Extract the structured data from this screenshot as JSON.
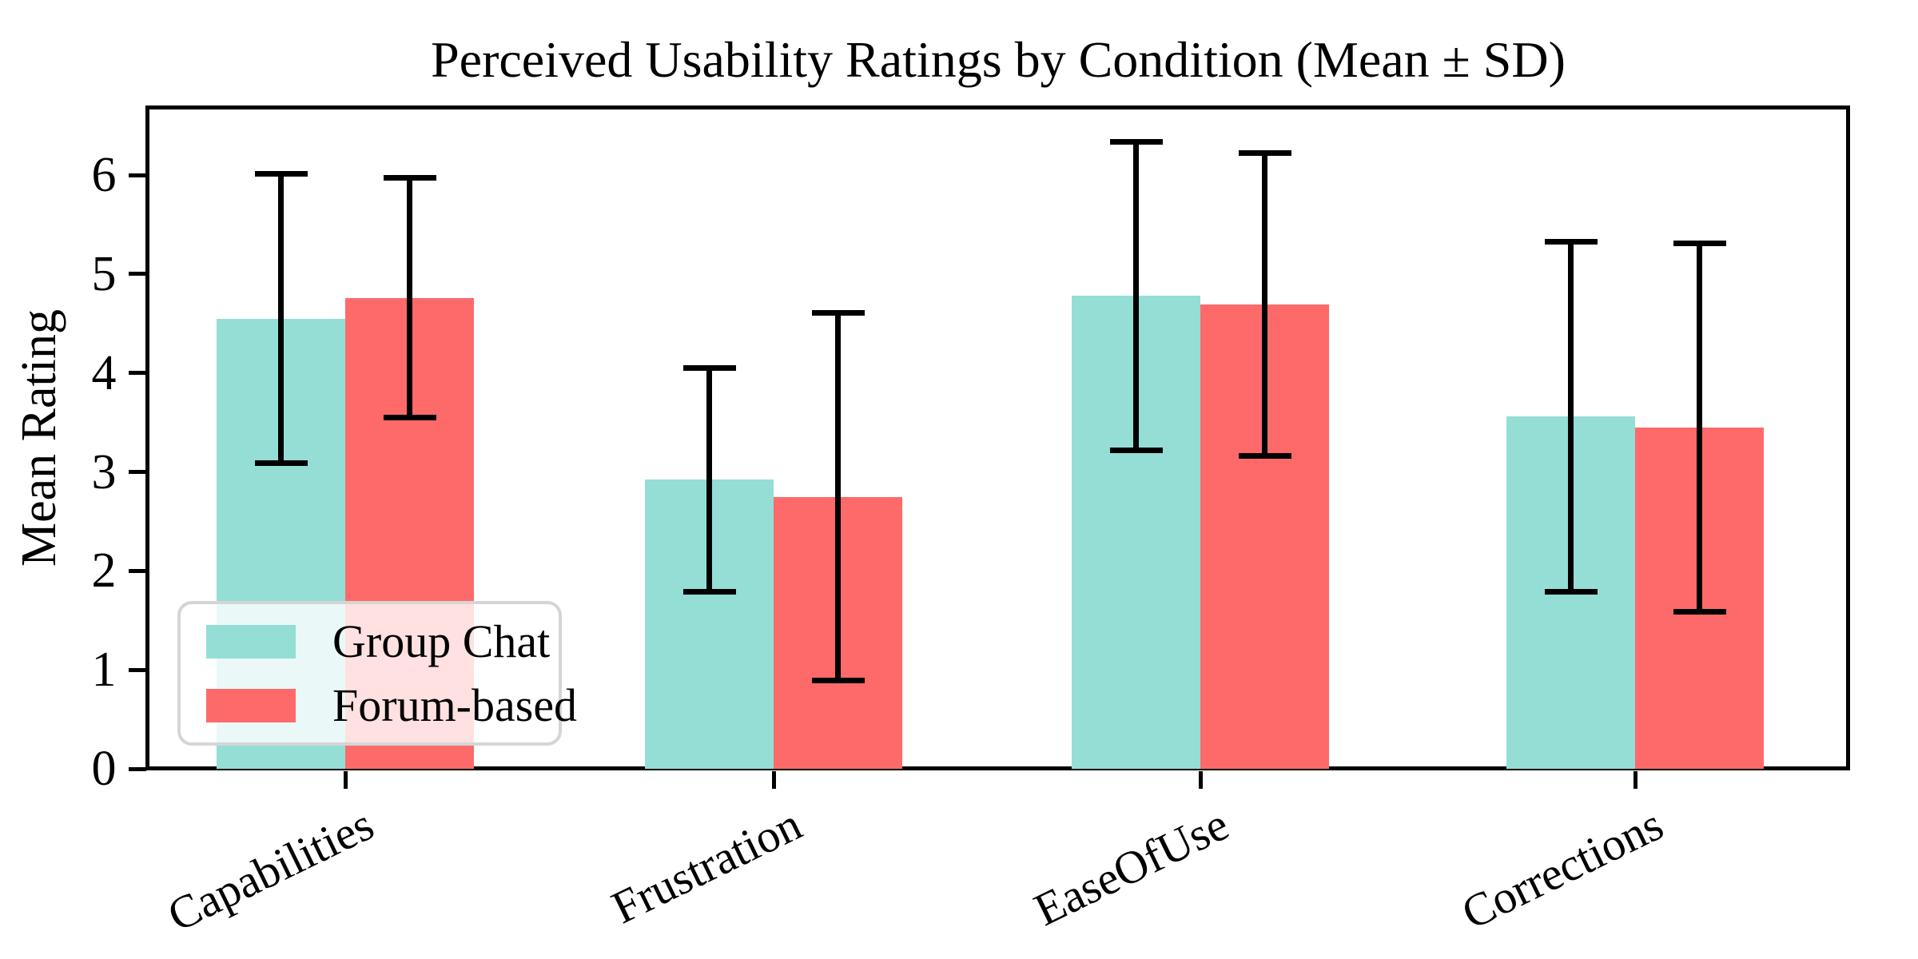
{
  "chart_data": {
    "type": "bar",
    "title": "Perceived Usability Ratings by Condition (Mean ± SD)",
    "ylabel": "Mean Rating",
    "xlabel": "",
    "categories": [
      "Capabilities",
      "Frustration",
      "EaseOfUse",
      "Corrections"
    ],
    "series": [
      {
        "name": "Group Chat",
        "color": "#94DED6",
        "means": [
          4.55,
          2.92,
          4.78,
          3.56
        ],
        "sds": [
          1.46,
          1.13,
          1.56,
          1.77
        ]
      },
      {
        "name": "Forum-based",
        "color": "#FE6A6A",
        "means": [
          4.76,
          2.75,
          4.69,
          3.45
        ],
        "sds": [
          1.21,
          1.86,
          1.53,
          1.86
        ]
      }
    ],
    "error_bars": "mean ± sd, black caps",
    "error_bar_color": "#000000",
    "ylim": [
      0,
      6.68
    ],
    "yticks": [
      0,
      1,
      2,
      3,
      4,
      5,
      6
    ],
    "ytick_labels": [
      "0",
      "1",
      "2",
      "3",
      "4",
      "5",
      "6"
    ],
    "grid": "off",
    "legend_position": "lower left",
    "legend_labels": [
      "Group Chat",
      "Forum-based"
    ]
  }
}
